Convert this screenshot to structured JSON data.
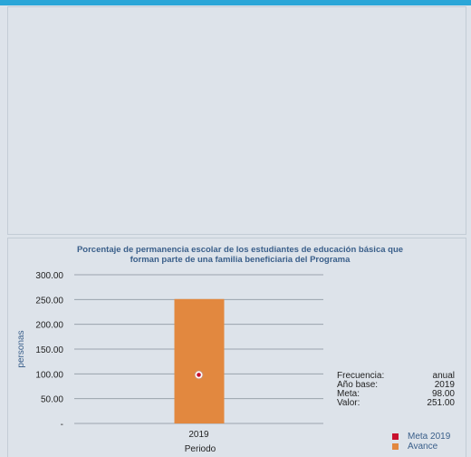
{
  "chart_data": {
    "type": "bar",
    "title": "Porcentaje de permanencia  escolar de los estudiantes de educación básica que forman parte de una familia beneficiaria del Programa",
    "title_line1": "Porcentaje de permanencia  escolar de los estudiantes de educación básica que",
    "title_line2": "forman parte de una familia beneficiaria del Programa",
    "xlabel": "Periodo",
    "ylabel": "personas",
    "categories": [
      "2019"
    ],
    "series": [
      {
        "name": "Avance",
        "values": [
          251.0
        ],
        "color": "#e2883f"
      },
      {
        "name": "Meta 2019",
        "values": [
          98.0
        ],
        "color": "#c8102e",
        "mark": "point"
      }
    ],
    "ylim": [
      0,
      300
    ],
    "yticks": [
      0,
      50,
      100,
      150,
      200,
      250,
      300
    ],
    "ytick_labels": [
      "-",
      "50.00",
      "100.00",
      "150.00",
      "200.00",
      "250.00",
      "300.00"
    ],
    "grid": true,
    "legend_position": "bottom-right"
  },
  "info": {
    "rows": [
      {
        "label": "Frecuencia:",
        "value": "anual"
      },
      {
        "label": "Año base:",
        "value": "2019"
      },
      {
        "label": "Meta:",
        "value": "98.00"
      },
      {
        "label": "Valor:",
        "value": "251.00"
      }
    ]
  },
  "legend": {
    "items": [
      {
        "label": "Meta 2019",
        "color": "#c8102e"
      },
      {
        "label": "Avance",
        "color": "#e2883f"
      }
    ]
  },
  "colors": {
    "accent": "#2aa6d8",
    "panel": "#dde3ea",
    "title": "#3a5f8a"
  }
}
